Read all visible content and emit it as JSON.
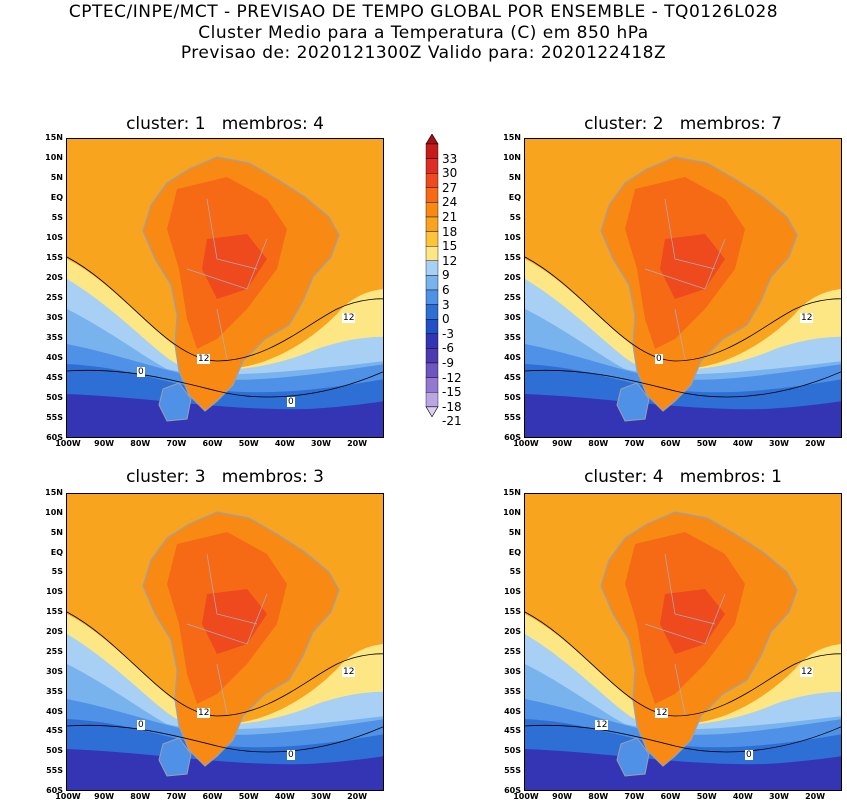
{
  "header": {
    "line1": "CPTEC/INPE/MCT - PREVISAO DE TEMPO GLOBAL POR ENSEMBLE - TQ0126L028",
    "line2": "Cluster Medio para a Temperatura (C) em 850 hPa",
    "line3": "Previsao de: 2020121300Z   Valido para: 2020122418Z"
  },
  "panels": [
    {
      "title": "cluster: 1   membros: 4",
      "contour_labels": [
        "12",
        "12",
        "0",
        "0"
      ]
    },
    {
      "title": "cluster: 2   membros: 7",
      "contour_labels": [
        "12",
        "0"
      ]
    },
    {
      "title": "cluster: 3   membros: 3",
      "contour_labels": [
        "12",
        "12",
        "0",
        "0"
      ]
    },
    {
      "title": "cluster: 4   membros: 1",
      "contour_labels": [
        "12",
        "12",
        "12",
        "0"
      ]
    }
  ],
  "axes": {
    "lat_labels": [
      "15N",
      "10N",
      "5N",
      "EQ",
      "5S",
      "10S",
      "15S",
      "20S",
      "25S",
      "30S",
      "35S",
      "40S",
      "45S",
      "50S",
      "55S",
      "60S"
    ],
    "lon_labels": [
      "100W",
      "90W",
      "80W",
      "70W",
      "60W",
      "50W",
      "40W",
      "30W",
      "20W"
    ]
  },
  "colorbar": {
    "labels": [
      "33",
      "30",
      "27",
      "24",
      "21",
      "18",
      "15",
      "12",
      "9",
      "6",
      "3",
      "0",
      "-3",
      "-6",
      "-9",
      "-12",
      "-15",
      "-18",
      "-21"
    ],
    "colors": [
      "#a50f15",
      "#c51b1d",
      "#de2d26",
      "#ee4a1d",
      "#f66a16",
      "#f88a13",
      "#f9a41f",
      "#fbc43a",
      "#fde684",
      "#a8d0f4",
      "#79b3ee",
      "#4e91e6",
      "#2e6fd6",
      "#2151c4",
      "#3335b5",
      "#4d3ab0",
      "#6d55c2",
      "#9479d2",
      "#bba5e3",
      "#dcd0f0"
    ]
  }
}
